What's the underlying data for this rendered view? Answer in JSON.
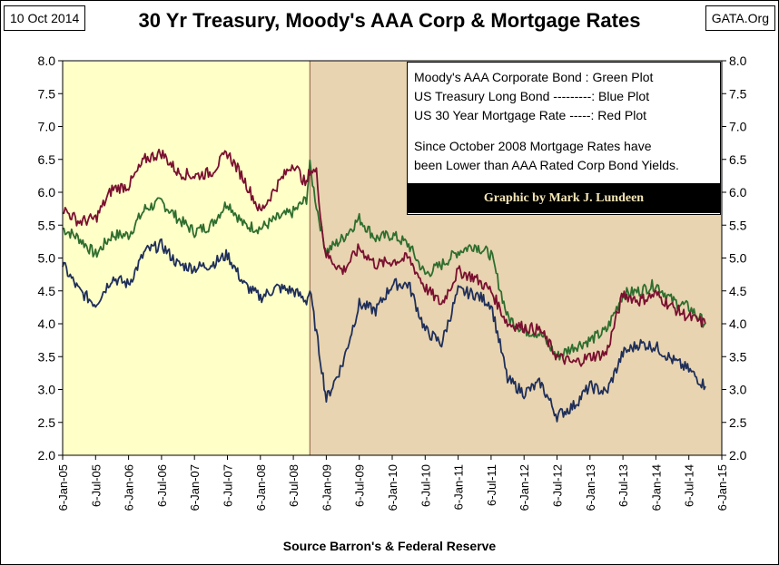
{
  "header": {
    "date": "10 Oct 2014",
    "title": "30 Yr Treasury, Moody's AAA Corp & Mortgage Rates",
    "source_site": "GATA.Org"
  },
  "footer": {
    "source": "Source Barron's & Federal Reserve"
  },
  "legend": {
    "line1": "Moody's AAA Corporate Bond : Green Plot",
    "line2": "US Treasury Long Bond ---------: Blue Plot",
    "line3": "US 30 Year Mortgage Rate -----:  Red Plot",
    "note1": "Since October 2008 Mortgage Rates have",
    "note2": "been Lower than AAA Rated Corp Bond Yields.",
    "credit": "Graphic by Mark J. Lundeen"
  },
  "colors": {
    "treasury": "#1f2f5a",
    "aaa": "#2e6e2e",
    "mortgage": "#7a1030",
    "shade_pre": "#ffffc8",
    "shade_post": "#e8d4b0"
  },
  "chart_data": {
    "type": "line",
    "title": "30 Yr Treasury, Moody's AAA Corp & Mortgage Rates",
    "xlabel": "",
    "ylabel": "",
    "ylim": [
      2.0,
      8.0
    ],
    "y_ticks": [
      "8.0",
      "7.5",
      "7.0",
      "6.5",
      "6.0",
      "5.5",
      "5.0",
      "4.5",
      "4.0",
      "3.5",
      "3.0",
      "2.5",
      "2.0"
    ],
    "x_tick_labels": [
      "6-Jan-05",
      "6-Jul-05",
      "6-Jan-06",
      "6-Jul-06",
      "6-Jan-07",
      "6-Jul-07",
      "6-Jan-08",
      "6-Jul-08",
      "6-Jan-09",
      "6-Jul-09",
      "6-Jan-10",
      "6-Jul-10",
      "6-Jan-11",
      "6-Jul-11",
      "6-Jan-12",
      "6-Jul-12",
      "6-Jan-13",
      "6-Jul-13",
      "6-Jan-14",
      "6-Jul-14",
      "6-Jan-15"
    ],
    "x_start": 2005.0,
    "x_end": 2015.0,
    "shade_split": 2008.75,
    "x": [
      2005.0,
      2005.25,
      2005.5,
      2005.75,
      2006.0,
      2006.25,
      2006.5,
      2006.75,
      2007.0,
      2007.25,
      2007.5,
      2007.75,
      2008.0,
      2008.25,
      2008.5,
      2008.7,
      2008.75,
      2008.85,
      2008.95,
      2009.0,
      2009.25,
      2009.5,
      2009.75,
      2010.0,
      2010.25,
      2010.5,
      2010.75,
      2011.0,
      2011.25,
      2011.5,
      2011.75,
      2012.0,
      2012.25,
      2012.5,
      2012.75,
      2013.0,
      2013.25,
      2013.5,
      2013.75,
      2014.0,
      2014.25,
      2014.5,
      2014.75
    ],
    "series": [
      {
        "name": "Moody's AAA Corporate Bond",
        "color": "green",
        "values": [
          5.45,
          5.3,
          5.05,
          5.35,
          5.35,
          5.75,
          5.85,
          5.6,
          5.4,
          5.5,
          5.85,
          5.5,
          5.45,
          5.6,
          5.7,
          5.9,
          6.4,
          5.8,
          5.3,
          5.1,
          5.3,
          5.6,
          5.3,
          5.35,
          5.2,
          4.75,
          4.9,
          5.1,
          5.2,
          5.05,
          4.1,
          3.9,
          3.85,
          3.5,
          3.65,
          3.75,
          3.9,
          4.45,
          4.5,
          4.6,
          4.35,
          4.25,
          4.0
        ]
      },
      {
        "name": "US Treasury Long Bond",
        "color": "blue",
        "values": [
          4.9,
          4.5,
          4.3,
          4.7,
          4.6,
          5.1,
          5.2,
          4.9,
          4.85,
          4.9,
          5.05,
          4.6,
          4.4,
          4.55,
          4.5,
          4.35,
          4.5,
          3.85,
          3.2,
          2.85,
          3.4,
          4.3,
          4.2,
          4.6,
          4.6,
          3.9,
          3.7,
          4.5,
          4.45,
          4.3,
          3.15,
          2.95,
          3.1,
          2.6,
          2.75,
          3.05,
          2.95,
          3.55,
          3.7,
          3.65,
          3.45,
          3.3,
          3.05
        ]
      },
      {
        "name": "US 30 Year Mortgage Rate",
        "color": "red",
        "values": [
          5.75,
          5.55,
          5.6,
          6.05,
          6.1,
          6.5,
          6.6,
          6.3,
          6.25,
          6.3,
          6.6,
          6.2,
          5.7,
          6.1,
          6.45,
          6.1,
          6.35,
          6.3,
          5.3,
          5.05,
          4.8,
          5.15,
          4.9,
          4.95,
          5.0,
          4.55,
          4.3,
          4.8,
          4.7,
          4.5,
          4.0,
          3.95,
          3.9,
          3.5,
          3.4,
          3.5,
          3.55,
          4.45,
          4.35,
          4.45,
          4.25,
          4.1,
          4.0
        ]
      }
    ]
  }
}
